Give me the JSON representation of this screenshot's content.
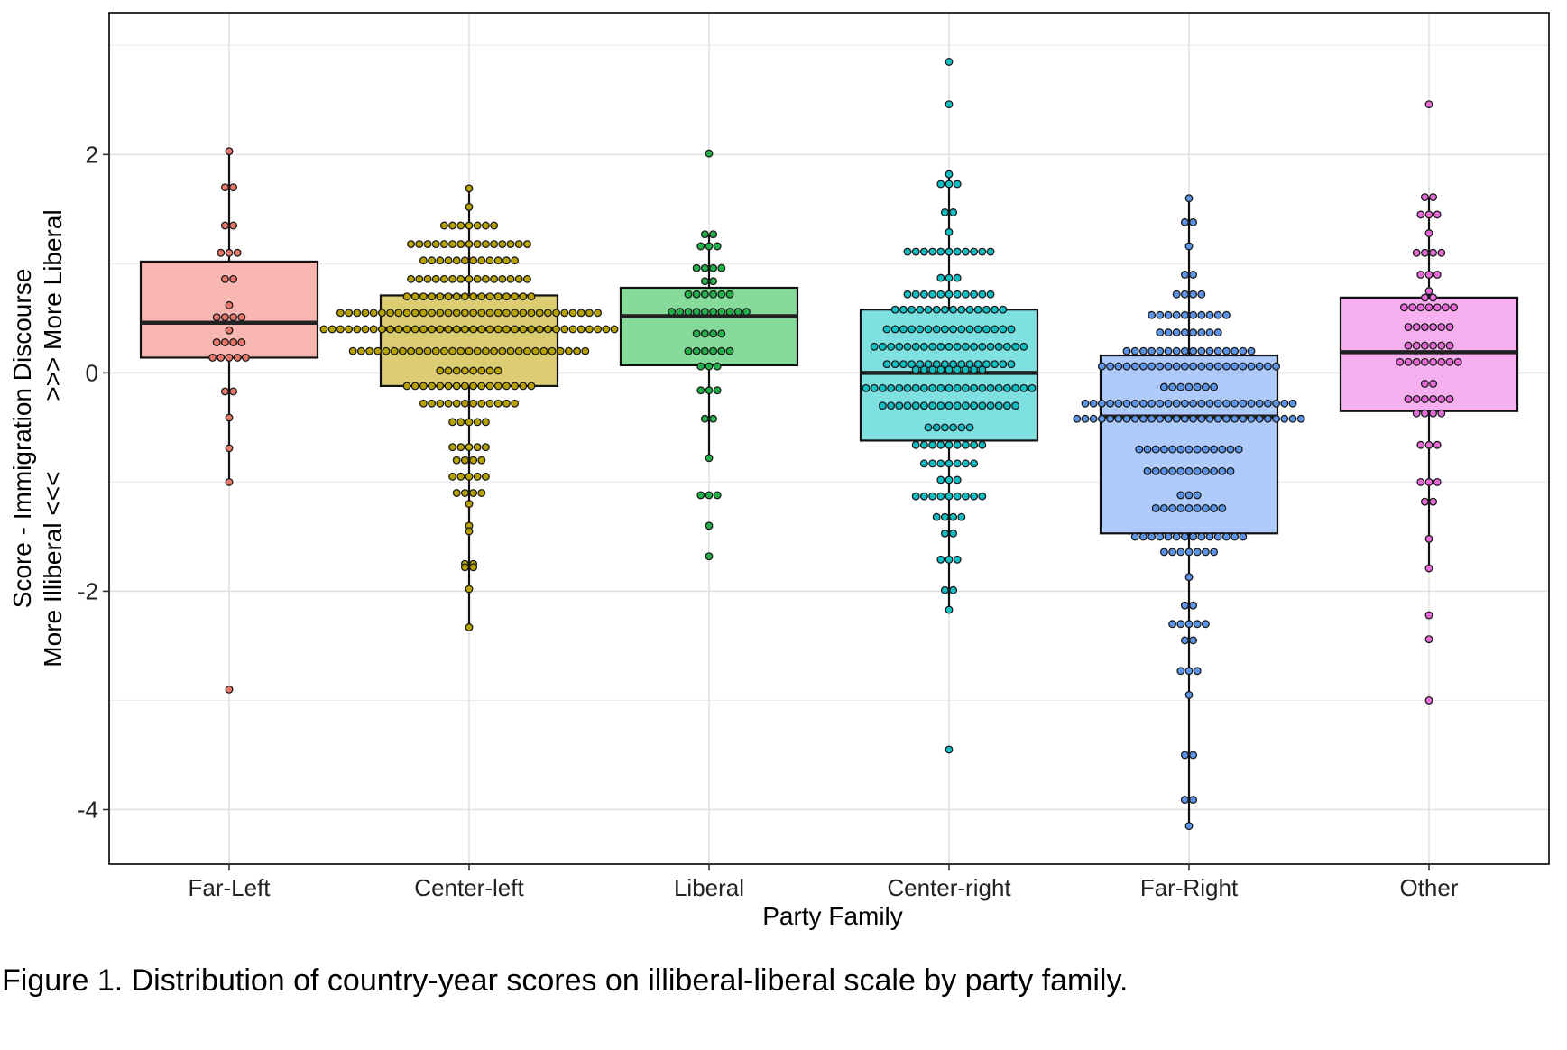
{
  "caption": "Figure 1. Distribution of country-year scores on illiberal-liberal scale by party family.",
  "chart_data": {
    "type": "boxplot",
    "xlabel": "Party Family",
    "ylabel_line1": "Score - Immigration Discourse",
    "ylabel_line2": "More Illiberal <<<          >>> More Liberal",
    "ylim": [
      -4.5,
      3.3
    ],
    "yticks": [
      2,
      0,
      -2,
      -4
    ],
    "ytick_labels": [
      "2",
      "0",
      "-2",
      "-4"
    ],
    "grid": true,
    "categories": [
      "Far-Left",
      "Center-left",
      "Liberal",
      "Center-right",
      "Far-Right",
      "Other"
    ],
    "colors": [
      "#f8b7b1",
      "#dccc72",
      "#86db9a",
      "#7fe0e0",
      "#aecbfb",
      "#f6b0ef"
    ],
    "dot_colors": [
      "#e8776a",
      "#b8a200",
      "#22b04a",
      "#10bfc4",
      "#5c95e8",
      "#e86ad8"
    ],
    "series": [
      {
        "name": "Far-Left",
        "box": {
          "q1": 0.14,
          "median": 0.46,
          "q3": 1.02,
          "whisker_low": -1.0,
          "whisker_high": 2.03
        },
        "points": [
          2.03,
          1.7,
          1.7,
          1.35,
          1.35,
          1.1,
          1.1,
          1.1,
          0.86,
          0.86,
          0.62,
          0.51,
          0.51,
          0.51,
          0.51,
          0.39,
          0.28,
          0.28,
          0.28,
          0.28,
          0.14,
          0.14,
          0.14,
          0.14,
          0.14,
          -0.17,
          -0.17,
          -0.41,
          -0.69,
          -1.0,
          -2.9
        ]
      },
      {
        "name": "Center-left",
        "box": {
          "q1": -0.12,
          "median": 0.4,
          "q3": 0.71,
          "whisker_low": -2.33,
          "whisker_high": 1.69
        },
        "points": [
          1.69,
          1.52,
          1.35,
          1.35,
          1.35,
          1.35,
          1.35,
          1.35,
          1.35,
          1.18,
          1.18,
          1.18,
          1.18,
          1.18,
          1.18,
          1.18,
          1.18,
          1.18,
          1.18,
          1.18,
          1.18,
          1.18,
          1.18,
          1.18,
          1.03,
          1.03,
          1.03,
          1.03,
          1.03,
          1.03,
          1.03,
          1.03,
          1.03,
          1.03,
          1.03,
          1.03,
          0.86,
          0.86,
          0.86,
          0.86,
          0.86,
          0.86,
          0.86,
          0.86,
          0.86,
          0.86,
          0.86,
          0.86,
          0.86,
          0.86,
          0.86,
          0.7,
          0.7,
          0.7,
          0.7,
          0.7,
          0.7,
          0.7,
          0.7,
          0.7,
          0.7,
          0.7,
          0.7,
          0.7,
          0.7,
          0.7,
          0.7,
          0.55,
          0.55,
          0.55,
          0.55,
          0.55,
          0.55,
          0.55,
          0.55,
          0.55,
          0.55,
          0.55,
          0.55,
          0.55,
          0.55,
          0.55,
          0.55,
          0.55,
          0.55,
          0.55,
          0.55,
          0.55,
          0.55,
          0.55,
          0.55,
          0.55,
          0.55,
          0.55,
          0.55,
          0.55,
          0.55,
          0.55,
          0.55,
          0.4,
          0.4,
          0.4,
          0.4,
          0.4,
          0.4,
          0.4,
          0.4,
          0.4,
          0.4,
          0.4,
          0.4,
          0.4,
          0.4,
          0.4,
          0.4,
          0.4,
          0.4,
          0.4,
          0.4,
          0.4,
          0.4,
          0.4,
          0.4,
          0.4,
          0.4,
          0.4,
          0.4,
          0.4,
          0.4,
          0.4,
          0.4,
          0.4,
          0.4,
          0.4,
          0.4,
          0.2,
          0.2,
          0.2,
          0.2,
          0.2,
          0.2,
          0.2,
          0.2,
          0.2,
          0.2,
          0.2,
          0.2,
          0.2,
          0.2,
          0.2,
          0.2,
          0.2,
          0.2,
          0.2,
          0.2,
          0.2,
          0.2,
          0.2,
          0.2,
          0.2,
          0.2,
          0.2,
          0.2,
          0.2,
          0.02,
          0.02,
          0.02,
          0.02,
          0.02,
          0.02,
          0.02,
          0.02,
          -0.12,
          -0.12,
          -0.12,
          -0.12,
          -0.12,
          -0.12,
          -0.12,
          -0.12,
          -0.12,
          -0.12,
          -0.12,
          -0.12,
          -0.12,
          -0.12,
          -0.12,
          -0.12,
          -0.28,
          -0.28,
          -0.28,
          -0.28,
          -0.28,
          -0.28,
          -0.28,
          -0.28,
          -0.28,
          -0.28,
          -0.28,
          -0.28,
          -0.45,
          -0.45,
          -0.45,
          -0.45,
          -0.45,
          -0.68,
          -0.68,
          -0.68,
          -0.68,
          -0.68,
          -0.8,
          -0.8,
          -0.8,
          -0.8,
          -0.95,
          -0.95,
          -0.95,
          -0.95,
          -0.95,
          -1.1,
          -1.1,
          -1.1,
          -1.1,
          -1.2,
          -1.4,
          -1.45,
          -1.75,
          -1.75,
          -1.78,
          -1.78,
          -1.98,
          -2.33
        ]
      },
      {
        "name": "Liberal",
        "box": {
          "q1": 0.07,
          "median": 0.52,
          "q3": 0.78,
          "whisker_low": -0.78,
          "whisker_high": 1.27
        },
        "points": [
          2.01,
          1.27,
          1.27,
          1.16,
          1.16,
          1.16,
          0.96,
          0.96,
          0.96,
          0.96,
          0.84,
          0.84,
          0.72,
          0.72,
          0.72,
          0.72,
          0.72,
          0.72,
          0.56,
          0.56,
          0.56,
          0.56,
          0.56,
          0.56,
          0.56,
          0.56,
          0.56,
          0.56,
          0.36,
          0.36,
          0.36,
          0.36,
          0.2,
          0.2,
          0.2,
          0.2,
          0.2,
          0.2,
          0.06,
          0.06,
          0.06,
          -0.16,
          -0.16,
          -0.16,
          -0.42,
          -0.42,
          -0.78,
          -1.12,
          -1.12,
          -1.12,
          -1.4,
          -1.68
        ]
      },
      {
        "name": "Center-right",
        "box": {
          "q1": -0.62,
          "median": 0.0,
          "q3": 0.58,
          "whisker_low": -2.17,
          "whisker_high": 1.82
        },
        "points": [
          2.85,
          2.46,
          1.82,
          1.73,
          1.73,
          1.73,
          1.47,
          1.47,
          1.29,
          1.11,
          1.11,
          1.11,
          1.11,
          1.11,
          1.11,
          1.11,
          1.11,
          1.11,
          1.11,
          1.11,
          0.87,
          0.87,
          0.87,
          0.72,
          0.72,
          0.72,
          0.72,
          0.72,
          0.72,
          0.72,
          0.72,
          0.72,
          0.72,
          0.72,
          0.58,
          0.58,
          0.58,
          0.58,
          0.58,
          0.58,
          0.58,
          0.58,
          0.58,
          0.58,
          0.58,
          0.58,
          0.58,
          0.58,
          0.4,
          0.4,
          0.4,
          0.4,
          0.4,
          0.4,
          0.4,
          0.4,
          0.4,
          0.4,
          0.4,
          0.4,
          0.4,
          0.4,
          0.4,
          0.4,
          0.24,
          0.24,
          0.24,
          0.24,
          0.24,
          0.24,
          0.24,
          0.24,
          0.24,
          0.24,
          0.24,
          0.24,
          0.24,
          0.24,
          0.24,
          0.24,
          0.24,
          0.24,
          0.24,
          0.08,
          0.08,
          0.08,
          0.08,
          0.08,
          0.08,
          0.08,
          0.08,
          0.08,
          0.08,
          0.08,
          0.08,
          0.08,
          0.08,
          0.08,
          0.08,
          0.03,
          0.03,
          0.03,
          0.03,
          0.03,
          0.03,
          0.03,
          0.03,
          0.03,
          -0.14,
          -0.14,
          -0.14,
          -0.14,
          -0.14,
          -0.14,
          -0.14,
          -0.14,
          -0.14,
          -0.14,
          -0.14,
          -0.14,
          -0.14,
          -0.14,
          -0.14,
          -0.14,
          -0.14,
          -0.14,
          -0.14,
          -0.14,
          -0.14,
          -0.3,
          -0.3,
          -0.3,
          -0.3,
          -0.3,
          -0.3,
          -0.3,
          -0.3,
          -0.3,
          -0.3,
          -0.3,
          -0.3,
          -0.3,
          -0.3,
          -0.3,
          -0.3,
          -0.3,
          -0.5,
          -0.5,
          -0.5,
          -0.5,
          -0.5,
          -0.5,
          -0.66,
          -0.66,
          -0.66,
          -0.66,
          -0.66,
          -0.66,
          -0.66,
          -0.66,
          -0.66,
          -0.83,
          -0.83,
          -0.83,
          -0.83,
          -0.83,
          -0.83,
          -0.83,
          -0.98,
          -0.98,
          -0.98,
          -1.13,
          -1.13,
          -1.13,
          -1.13,
          -1.13,
          -1.13,
          -1.13,
          -1.13,
          -1.13,
          -1.32,
          -1.32,
          -1.32,
          -1.32,
          -1.47,
          -1.47,
          -1.71,
          -1.71,
          -1.71,
          -1.99,
          -1.99,
          -2.17,
          -3.45
        ]
      },
      {
        "name": "Far-Right",
        "box": {
          "q1": -1.47,
          "median": -0.4,
          "q3": 0.16,
          "whisker_low": -4.15,
          "whisker_high": 1.6
        },
        "points": [
          1.6,
          1.38,
          1.38,
          1.16,
          0.9,
          0.9,
          0.72,
          0.72,
          0.72,
          0.72,
          0.53,
          0.53,
          0.53,
          0.53,
          0.53,
          0.53,
          0.53,
          0.53,
          0.53,
          0.53,
          0.37,
          0.37,
          0.37,
          0.37,
          0.37,
          0.37,
          0.37,
          0.37,
          0.2,
          0.2,
          0.2,
          0.2,
          0.2,
          0.2,
          0.2,
          0.2,
          0.2,
          0.2,
          0.2,
          0.2,
          0.2,
          0.2,
          0.2,
          0.2,
          0.06,
          0.06,
          0.06,
          0.06,
          0.06,
          0.06,
          0.06,
          0.06,
          0.06,
          0.06,
          0.06,
          0.06,
          0.06,
          0.06,
          0.06,
          0.06,
          0.06,
          0.06,
          0.06,
          0.06,
          0.06,
          0.06,
          -0.13,
          -0.13,
          -0.13,
          -0.13,
          -0.13,
          -0.13,
          -0.13,
          -0.28,
          -0.28,
          -0.28,
          -0.28,
          -0.28,
          -0.28,
          -0.28,
          -0.28,
          -0.28,
          -0.28,
          -0.28,
          -0.28,
          -0.28,
          -0.28,
          -0.28,
          -0.28,
          -0.28,
          -0.28,
          -0.28,
          -0.28,
          -0.28,
          -0.28,
          -0.28,
          -0.28,
          -0.28,
          -0.28,
          -0.42,
          -0.42,
          -0.42,
          -0.42,
          -0.42,
          -0.42,
          -0.42,
          -0.42,
          -0.42,
          -0.42,
          -0.42,
          -0.42,
          -0.42,
          -0.42,
          -0.42,
          -0.42,
          -0.42,
          -0.42,
          -0.42,
          -0.42,
          -0.42,
          -0.42,
          -0.42,
          -0.42,
          -0.42,
          -0.42,
          -0.42,
          -0.42,
          -0.7,
          -0.7,
          -0.7,
          -0.7,
          -0.7,
          -0.7,
          -0.7,
          -0.7,
          -0.7,
          -0.7,
          -0.7,
          -0.7,
          -0.7,
          -0.9,
          -0.9,
          -0.9,
          -0.9,
          -0.9,
          -0.9,
          -0.9,
          -0.9,
          -0.9,
          -0.9,
          -0.9,
          -1.12,
          -1.12,
          -1.12,
          -1.24,
          -1.24,
          -1.24,
          -1.24,
          -1.24,
          -1.24,
          -1.24,
          -1.24,
          -1.24,
          -1.5,
          -1.5,
          -1.5,
          -1.5,
          -1.5,
          -1.5,
          -1.5,
          -1.5,
          -1.5,
          -1.5,
          -1.5,
          -1.5,
          -1.5,
          -1.5,
          -1.64,
          -1.64,
          -1.64,
          -1.64,
          -1.64,
          -1.64,
          -1.64,
          -1.87,
          -2.13,
          -2.13,
          -2.3,
          -2.3,
          -2.3,
          -2.3,
          -2.3,
          -2.45,
          -2.45,
          -2.73,
          -2.73,
          -2.73,
          -2.95,
          -3.5,
          -3.5,
          -3.91,
          -3.91,
          -4.15
        ]
      },
      {
        "name": "Other",
        "box": {
          "q1": -0.35,
          "median": 0.19,
          "q3": 0.69,
          "whisker_low": -1.79,
          "whisker_high": 1.61
        },
        "points": [
          2.46,
          1.61,
          1.61,
          1.45,
          1.45,
          1.45,
          1.28,
          1.1,
          1.1,
          1.1,
          1.1,
          0.9,
          0.9,
          0.9,
          0.75,
          0.69,
          0.69,
          0.6,
          0.6,
          0.6,
          0.6,
          0.6,
          0.6,
          0.6,
          0.42,
          0.42,
          0.42,
          0.42,
          0.42,
          0.42,
          0.25,
          0.25,
          0.25,
          0.25,
          0.25,
          0.25,
          0.1,
          0.1,
          0.1,
          0.1,
          0.1,
          0.1,
          0.1,
          0.1,
          -0.1,
          -0.1,
          -0.24,
          -0.24,
          -0.24,
          -0.24,
          -0.24,
          -0.24,
          -0.37,
          -0.37,
          -0.37,
          -0.37,
          -0.66,
          -0.66,
          -0.66,
          -1.0,
          -1.0,
          -1.0,
          -1.18,
          -1.18,
          -1.52,
          -1.79,
          -2.22,
          -2.44,
          -3.0
        ]
      }
    ]
  }
}
